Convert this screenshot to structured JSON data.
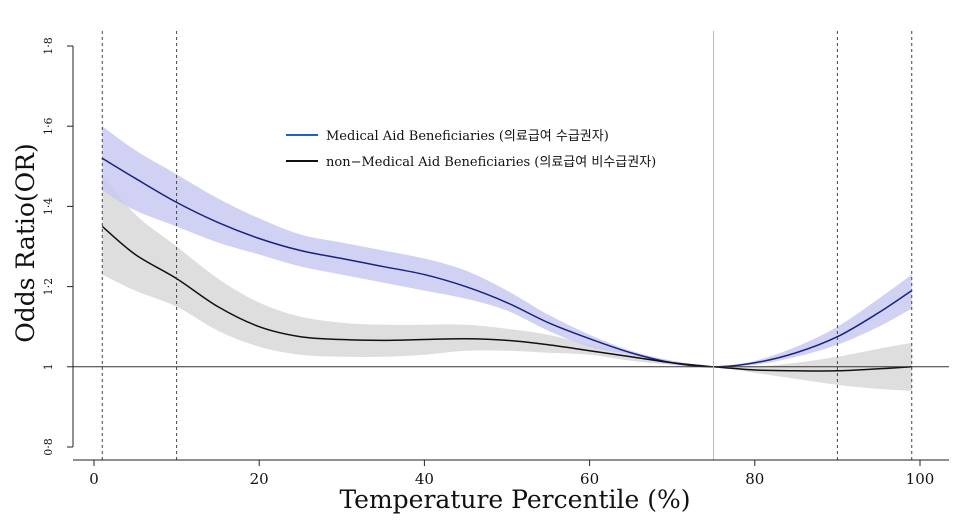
{
  "chart_data": {
    "type": "line",
    "title": "",
    "xlabel": "Temperature Percentile (%)",
    "ylabel": "Odds Ratio(OR)",
    "xlim": [
      0,
      100
    ],
    "ylim": [
      0.8,
      1.8
    ],
    "x_ticks": [
      "0",
      "20",
      "40",
      "60",
      "80",
      "100"
    ],
    "y_ticks": [
      "0·8",
      "1",
      "1·2",
      "1·4",
      "1·6",
      "1·8"
    ],
    "reference_line_y": 1,
    "reference_percentile": 75,
    "dashed_percentiles": [
      1,
      10,
      90,
      99
    ],
    "legend_position": "top-center",
    "series": [
      {
        "name": "Medical Aid Beneficiaries (의료급여 수급권자)",
        "color": "#1a237e",
        "legend_color": "#1f5fd6",
        "band_color": "#c9c9f2",
        "x": [
          1,
          5,
          10,
          15,
          20,
          25,
          30,
          35,
          40,
          45,
          50,
          55,
          60,
          65,
          70,
          75,
          80,
          85,
          90,
          95,
          99
        ],
        "y": [
          1.52,
          1.47,
          1.41,
          1.36,
          1.32,
          1.29,
          1.27,
          1.25,
          1.23,
          1.2,
          1.16,
          1.11,
          1.07,
          1.035,
          1.01,
          1.0,
          1.01,
          1.035,
          1.075,
          1.135,
          1.19
        ],
        "lower": [
          1.44,
          1.39,
          1.35,
          1.31,
          1.28,
          1.25,
          1.23,
          1.21,
          1.19,
          1.17,
          1.14,
          1.09,
          1.05,
          1.03,
          1.005,
          1.0,
          1.005,
          1.025,
          1.055,
          1.1,
          1.145
        ],
        "upper": [
          1.6,
          1.54,
          1.48,
          1.42,
          1.37,
          1.33,
          1.31,
          1.29,
          1.27,
          1.24,
          1.19,
          1.13,
          1.08,
          1.04,
          1.015,
          1.0,
          1.015,
          1.05,
          1.1,
          1.17,
          1.23
        ]
      },
      {
        "name": "non−Medical Aid Beneficiaries (의료급여 비수급권자)",
        "color": "#111111",
        "legend_color": "#111111",
        "band_color": "#dcdcdc",
        "x": [
          1,
          5,
          10,
          15,
          20,
          25,
          30,
          35,
          40,
          45,
          50,
          55,
          60,
          65,
          70,
          75,
          80,
          85,
          90,
          95,
          99
        ],
        "y": [
          1.35,
          1.28,
          1.22,
          1.15,
          1.1,
          1.075,
          1.068,
          1.066,
          1.068,
          1.07,
          1.066,
          1.055,
          1.04,
          1.025,
          1.01,
          1.0,
          0.992,
          0.99,
          0.99,
          0.995,
          1.0
        ],
        "lower": [
          1.23,
          1.19,
          1.15,
          1.09,
          1.05,
          1.03,
          1.025,
          1.025,
          1.03,
          1.04,
          1.04,
          1.035,
          1.03,
          1.015,
          1.005,
          1.0,
          0.985,
          0.97,
          0.955,
          0.945,
          0.94
        ],
        "upper": [
          1.48,
          1.38,
          1.3,
          1.22,
          1.16,
          1.125,
          1.11,
          1.105,
          1.105,
          1.105,
          1.095,
          1.08,
          1.055,
          1.035,
          1.015,
          1.0,
          1.0,
          1.01,
          1.025,
          1.045,
          1.06
        ]
      }
    ]
  }
}
